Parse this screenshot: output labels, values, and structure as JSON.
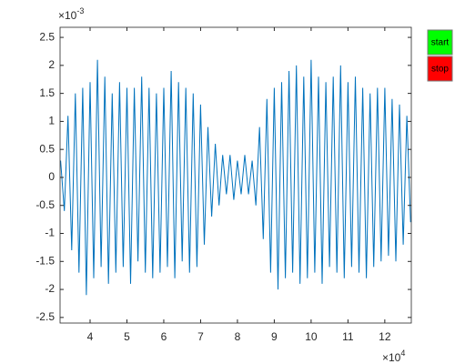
{
  "chart_data": {
    "type": "line",
    "x_exponent": {
      "base": "×10",
      "power": "4"
    },
    "y_exponent": {
      "base": "×10",
      "power": "-3"
    },
    "x": [
      3.2,
      3.3,
      3.4,
      3.5,
      3.6,
      3.7,
      3.8,
      3.9,
      4.0,
      4.1,
      4.2,
      4.3,
      4.4,
      4.5,
      4.6,
      4.7,
      4.8,
      4.9,
      5.0,
      5.1,
      5.2,
      5.3,
      5.4,
      5.5,
      5.6,
      5.7,
      5.8,
      5.9,
      6.0,
      6.1,
      6.2,
      6.3,
      6.4,
      6.5,
      6.6,
      6.7,
      6.8,
      6.9,
      7.0,
      7.1,
      7.2,
      7.3,
      7.4,
      7.5,
      7.6,
      7.7,
      7.8,
      7.9,
      8.0,
      8.1,
      8.2,
      8.3,
      8.4,
      8.5,
      8.6,
      8.7,
      8.8,
      8.9,
      9.0,
      9.1,
      9.2,
      9.3,
      9.4,
      9.5,
      9.6,
      9.7,
      9.8,
      9.9,
      10.0,
      10.1,
      10.2,
      10.3,
      10.4,
      10.5,
      10.6,
      10.7,
      10.8,
      10.9,
      11.0,
      11.1,
      11.2,
      11.3,
      11.4,
      11.5,
      11.6,
      11.7,
      11.8,
      11.9,
      12.0,
      12.1,
      12.2,
      12.3,
      12.4,
      12.5,
      12.6,
      12.7
    ],
    "series": [
      {
        "color": "#0072bd",
        "values": [
          0.3,
          -0.6,
          1.1,
          -1.3,
          1.5,
          -1.7,
          1.6,
          -2.1,
          1.7,
          -1.8,
          2.1,
          -1.6,
          1.8,
          -1.9,
          1.5,
          -1.7,
          1.7,
          -1.6,
          1.6,
          -1.9,
          1.6,
          -1.5,
          1.8,
          -1.7,
          1.6,
          -1.8,
          1.5,
          -1.7,
          1.6,
          -1.6,
          1.9,
          -1.8,
          1.7,
          -1.5,
          1.6,
          -1.7,
          1.5,
          -1.6,
          1.3,
          -1.2,
          0.9,
          -0.7,
          0.6,
          -0.5,
          0.4,
          -0.3,
          0.4,
          -0.4,
          0.3,
          -0.3,
          0.4,
          -0.3,
          0.3,
          -0.5,
          0.9,
          -1.1,
          1.4,
          -1.7,
          1.6,
          -2.0,
          1.7,
          -1.8,
          1.9,
          -1.7,
          2.0,
          -1.9,
          1.8,
          -1.8,
          2.1,
          -1.7,
          1.8,
          -1.9,
          1.7,
          -1.6,
          1.8,
          -1.7,
          2.0,
          -1.8,
          1.7,
          -1.6,
          1.8,
          -1.7,
          1.6,
          -1.8,
          1.5,
          -1.6,
          1.6,
          -1.5,
          1.6,
          -1.4,
          1.4,
          -1.5,
          1.3,
          -1.2,
          1.1,
          -0.8
        ]
      }
    ],
    "xlim": [
      3.185,
      12.72
    ],
    "xticks": [
      4,
      5,
      6,
      7,
      8,
      9,
      10,
      11,
      12
    ],
    "ylim": [
      -2.6,
      2.68
    ],
    "yticks": [
      -2.5,
      -2,
      -1.5,
      -1,
      -0.5,
      0,
      0.5,
      1,
      1.5,
      2,
      2.5
    ]
  },
  "buttons": [
    {
      "label": "start",
      "color": "#00ff00"
    },
    {
      "label": "stop",
      "color": "#ff0000"
    }
  ]
}
